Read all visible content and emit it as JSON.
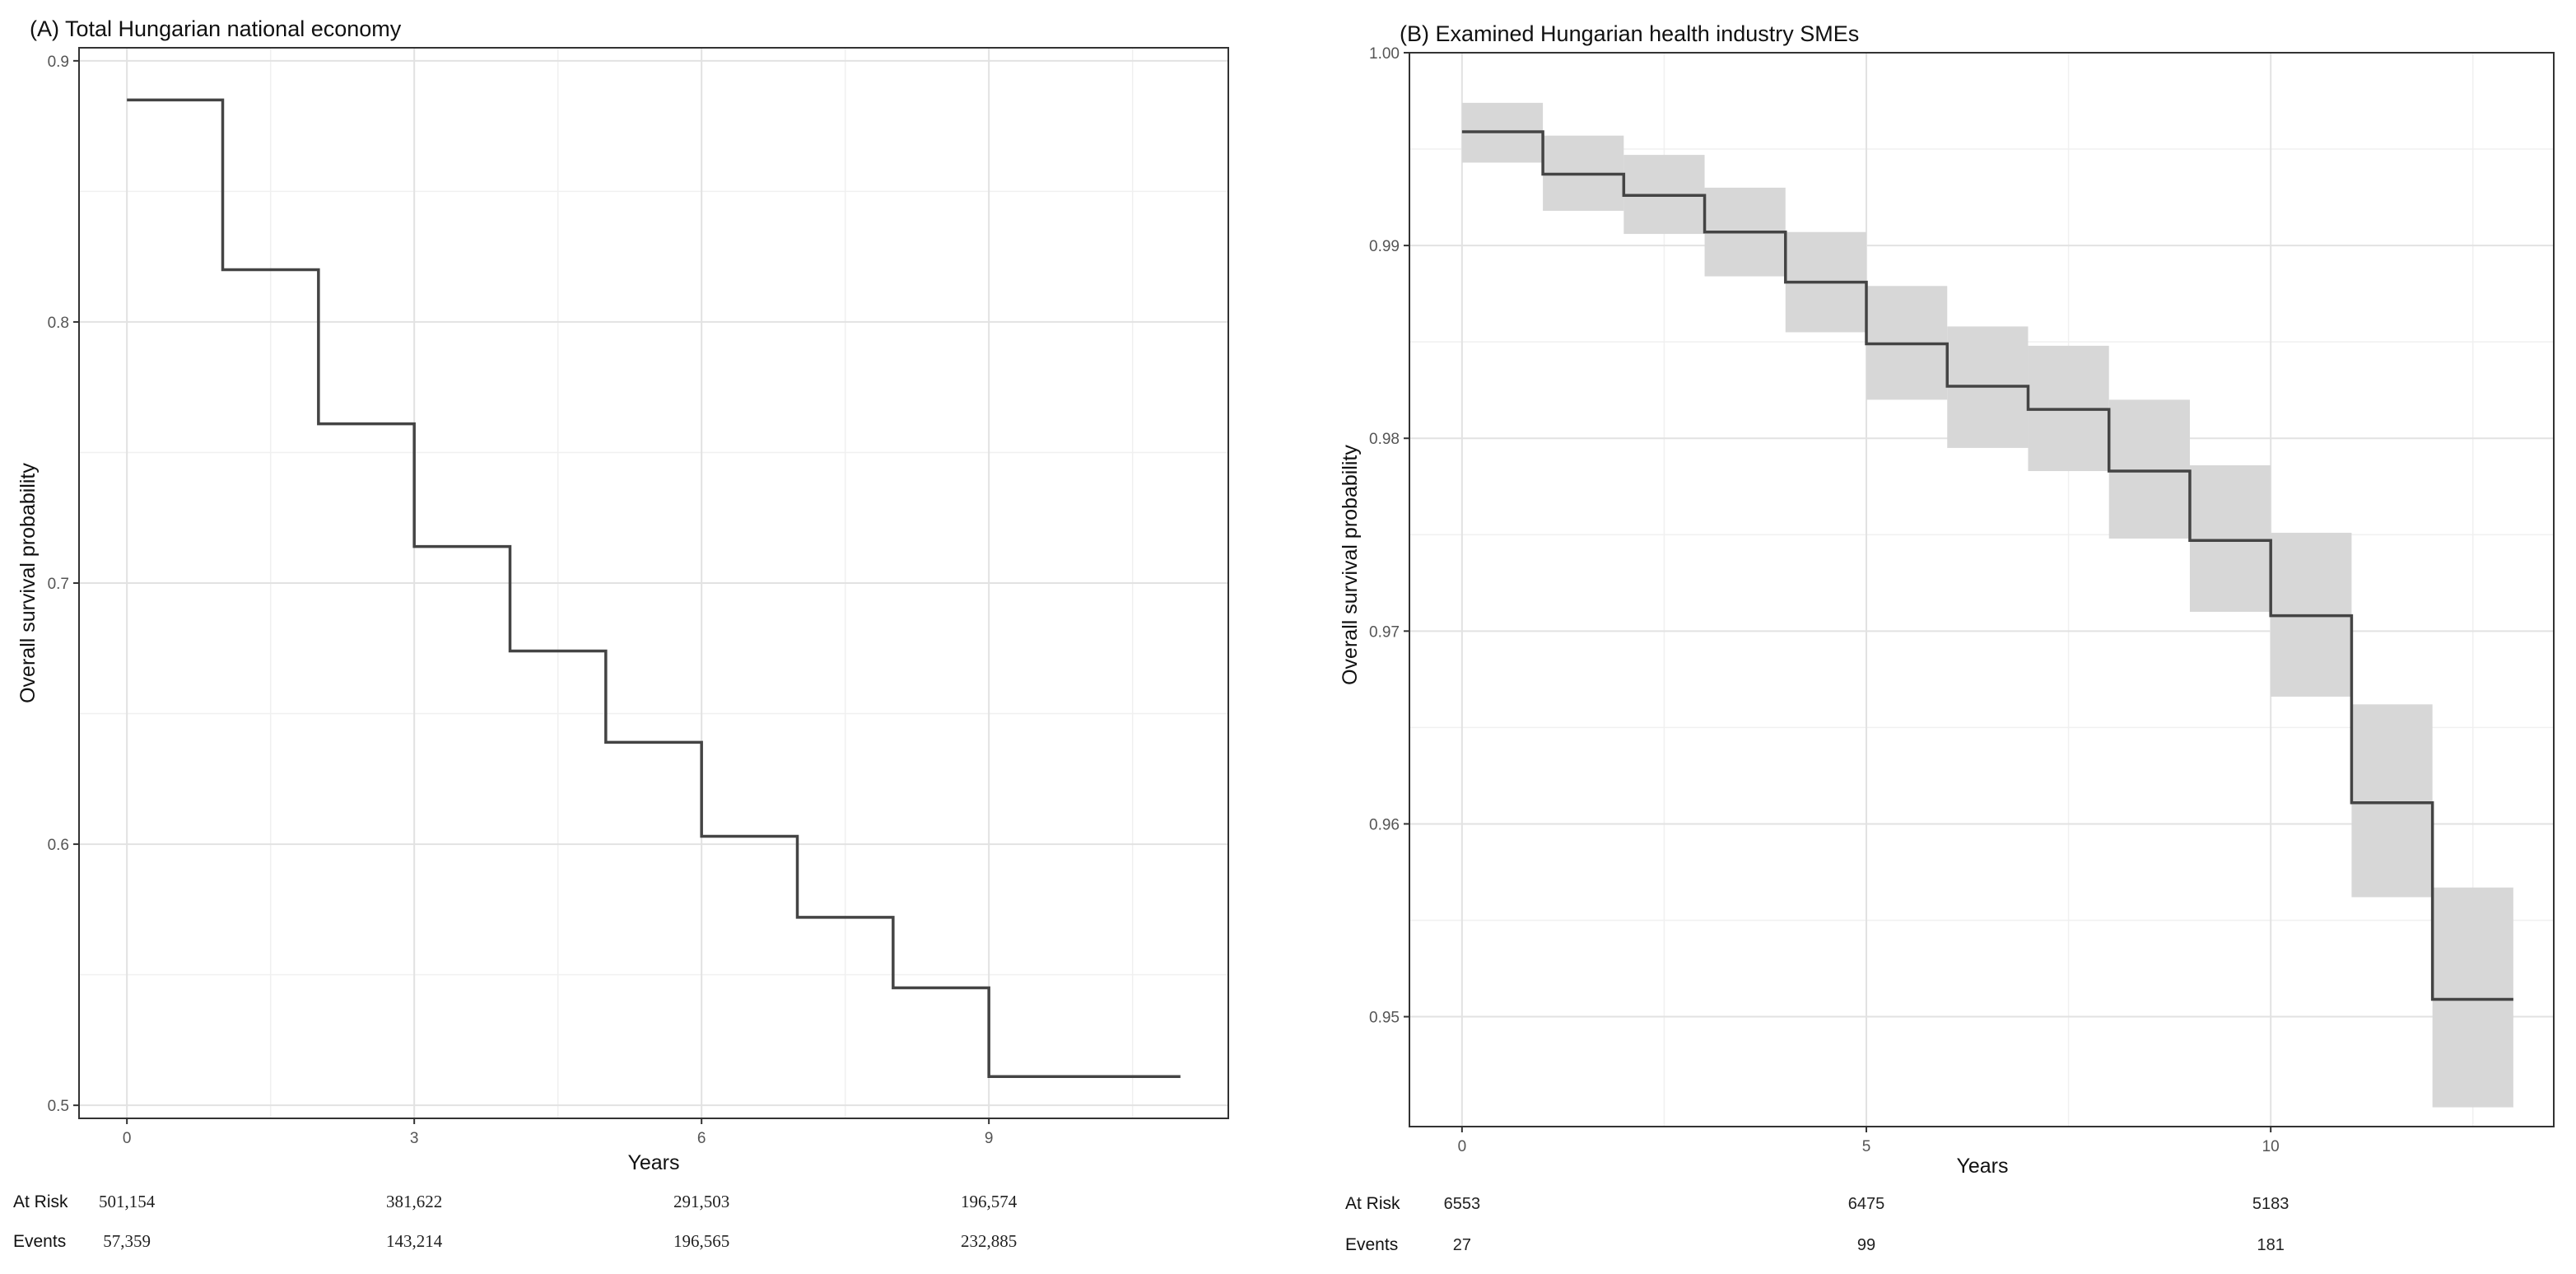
{
  "chart_data": [
    {
      "type": "line",
      "subtype": "kaplan-meier-step",
      "title": "(A) Total Hungarian national economy",
      "xlabel": "Years",
      "ylabel": "Overall survival probability",
      "xlim": [
        -0.5,
        11.5
      ],
      "ylim": [
        0.495,
        0.905
      ],
      "xticks": [
        0,
        3,
        6,
        9
      ],
      "xtick_labels": [
        "0",
        "3",
        "6",
        "9"
      ],
      "yticks": [
        0.5,
        0.6,
        0.7,
        0.8,
        0.9
      ],
      "ytick_labels": [
        "0.5",
        "0.6",
        "0.7",
        "0.8",
        "0.9"
      ],
      "grid": true,
      "series": [
        {
          "name": "Survival",
          "x": [
            0,
            1,
            2,
            3,
            4,
            5,
            6,
            7,
            8,
            9,
            11
          ],
          "values": [
            0.885,
            0.82,
            0.761,
            0.714,
            0.674,
            0.639,
            0.603,
            0.572,
            0.545,
            0.511,
            0.511
          ]
        }
      ],
      "risk_table": {
        "at_risk_label": "At Risk",
        "events_label": "Events",
        "times": [
          0,
          3,
          6,
          9
        ],
        "at_risk": [
          "501,154",
          "381,622",
          "291,503",
          "196,574"
        ],
        "events": [
          "57,359",
          "143,214",
          "196,565",
          "232,885"
        ]
      }
    },
    {
      "type": "line",
      "subtype": "kaplan-meier-step-with-ci",
      "title": "(B) Examined Hungarian health industry SMEs",
      "xlabel": "Years",
      "ylabel": "Overall survival probability",
      "xlim": [
        -0.65,
        13.5
      ],
      "ylim": [
        0.9443,
        1.0
      ],
      "xticks": [
        0,
        5,
        10
      ],
      "xtick_labels": [
        "0",
        "5",
        "10"
      ],
      "yticks": [
        0.95,
        0.96,
        0.97,
        0.98,
        0.99,
        1.0
      ],
      "ytick_labels": [
        "0.95",
        "0.96",
        "0.97",
        "0.98",
        "0.99",
        "1.00"
      ],
      "grid": true,
      "series": [
        {
          "name": "Survival",
          "x": [
            0,
            1,
            2,
            3,
            4,
            5,
            6,
            7,
            8,
            9,
            10,
            11,
            12,
            13
          ],
          "values": [
            0.9959,
            0.9937,
            0.9926,
            0.9907,
            0.9881,
            0.9849,
            0.9827,
            0.9815,
            0.9783,
            0.9747,
            0.9708,
            0.9611,
            0.9509,
            0.9509
          ],
          "lower": [
            0.9943,
            0.9918,
            0.9906,
            0.9884,
            0.9855,
            0.982,
            0.9795,
            0.9783,
            0.9748,
            0.971,
            0.9666,
            0.9562,
            0.9453,
            0.9453
          ],
          "upper": [
            0.9974,
            0.9957,
            0.9947,
            0.993,
            0.9907,
            0.9879,
            0.9858,
            0.9848,
            0.982,
            0.9786,
            0.9751,
            0.9662,
            0.9567,
            0.9567
          ]
        }
      ],
      "risk_table": {
        "at_risk_label": "At Risk",
        "events_label": "Events",
        "times": [
          0,
          5,
          10
        ],
        "at_risk": [
          "6553",
          "6475",
          "5183"
        ],
        "events": [
          "27",
          "99",
          "181"
        ]
      }
    }
  ]
}
